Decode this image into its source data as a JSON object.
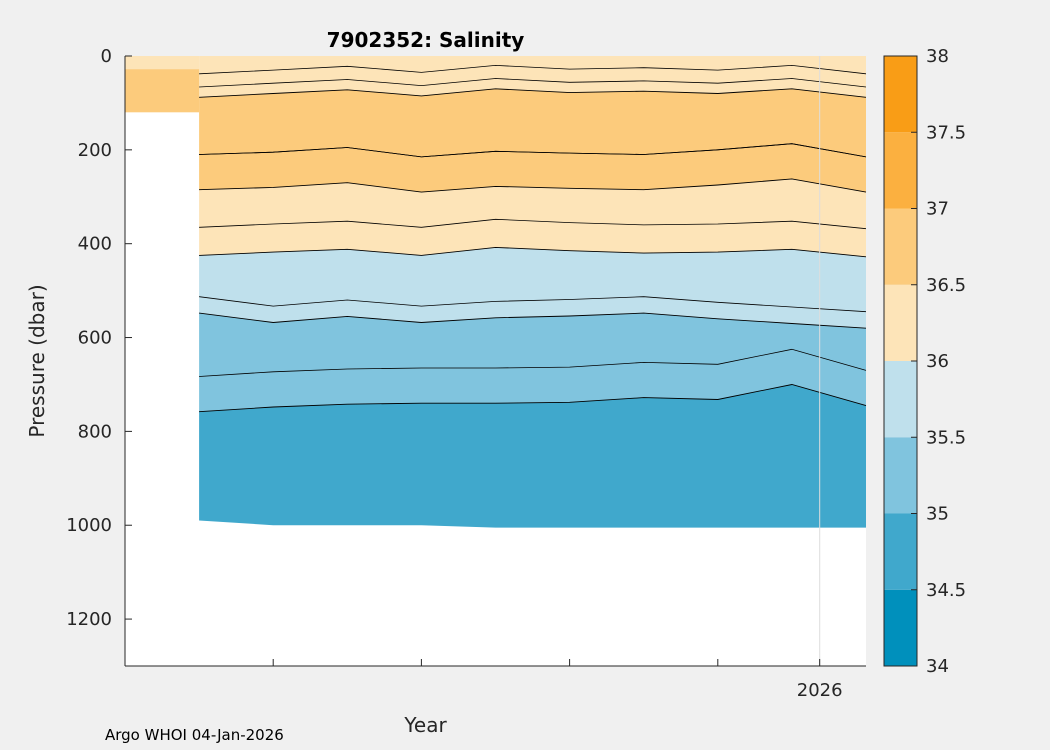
{
  "chart_data": {
    "type": "contourf",
    "title": "7902352:  Salinity",
    "xlabel": "Year",
    "ylabel": "Pressure (dbar)",
    "ylim": [
      0,
      1300
    ],
    "yticks": [
      0,
      200,
      400,
      600,
      800,
      1000,
      1200
    ],
    "xticks_labeled": [
      {
        "label": "2026",
        "value": 2026.0
      }
    ],
    "xlim": [
      2025.25,
      2026.05
    ],
    "x_minor_ticks": [
      2025.25,
      2025.41,
      2025.57,
      2025.73,
      2025.89
    ],
    "data_start_year": 2025.33,
    "colorbar": {
      "levels": [
        34,
        34.5,
        35,
        35.5,
        36,
        36.5,
        37,
        37.5,
        38
      ],
      "tick_labels": [
        "34",
        "34.5",
        "35",
        "35.5",
        "36",
        "36.5",
        "37",
        "37.5",
        "38"
      ],
      "colors": [
        "#0090bc",
        "#40a8cc",
        "#80c4de",
        "#bfe0ec",
        "#fde4b8",
        "#fccb7c",
        "#fbb040",
        "#f99d16"
      ]
    },
    "profile_years": [
      2025.33,
      2025.41,
      2025.49,
      2025.57,
      2025.65,
      2025.73,
      2025.81,
      2025.89,
      2025.97,
      2026.03
    ],
    "max_pressure_by_profile": [
      990,
      1000,
      1000,
      1000,
      1005,
      1005,
      1005,
      1005,
      1005,
      1005
    ],
    "bands": [
      {
        "name": "35.0-35.5 upper boundary",
        "level": 35.0,
        "depth_by_profile": [
          758,
          748,
          742,
          740,
          740,
          738,
          728,
          732,
          700,
          745
        ]
      },
      {
        "name": "35.5-36.0 upper boundary",
        "level": 35.5,
        "depth_by_profile": [
          548,
          568,
          555,
          568,
          558,
          554,
          548,
          560,
          570,
          580
        ]
      },
      {
        "name": "36.0-36.5 upper boundary",
        "level": 36.0,
        "depth_by_profile": [
          425,
          418,
          412,
          425,
          408,
          415,
          420,
          418,
          412,
          428
        ]
      },
      {
        "name": "36.5-37.0 upper boundary",
        "level": 36.5,
        "depth_by_profile": [
          285,
          280,
          270,
          290,
          278,
          282,
          285,
          275,
          262,
          290
        ]
      },
      {
        "name": "surface 36.0-36.5 lower boundary",
        "level": 36.5,
        "depth_by_profile": [
          88,
          80,
          72,
          85,
          70,
          78,
          75,
          80,
          70,
          88
        ]
      }
    ],
    "footer": "Argo WHOI 04-Jan-2026"
  }
}
